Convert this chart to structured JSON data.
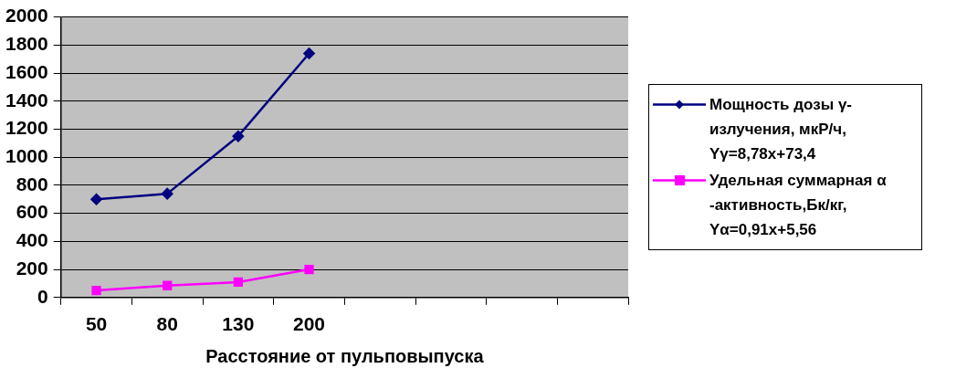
{
  "chart_data": {
    "type": "line",
    "xlabel": "Расстояние от пульповыпуска",
    "categories": [
      "50",
      "80",
      "130",
      "200",
      null,
      null,
      null,
      null
    ],
    "series": [
      {
        "name": "Мощность дозы γ-излучения, мкР/ч, Yγ=8,78х+73,4",
        "color": "#000080",
        "marker": "diamond",
        "values": [
          700,
          740,
          1150,
          1740,
          null,
          null,
          null,
          null
        ]
      },
      {
        "name": "Удельная суммарная α -активность,Бк/кг, Yα=0,91х+5,56",
        "color": "#ff00ff",
        "marker": "square",
        "values": [
          50,
          85,
          110,
          200,
          null,
          null,
          null,
          null
        ]
      }
    ],
    "ylim": [
      0,
      2000
    ],
    "yticks": [
      0,
      200,
      400,
      600,
      800,
      1000,
      1200,
      1400,
      1600,
      1800,
      2000
    ],
    "grid": "y",
    "legend": "right",
    "line_style": "solid"
  }
}
